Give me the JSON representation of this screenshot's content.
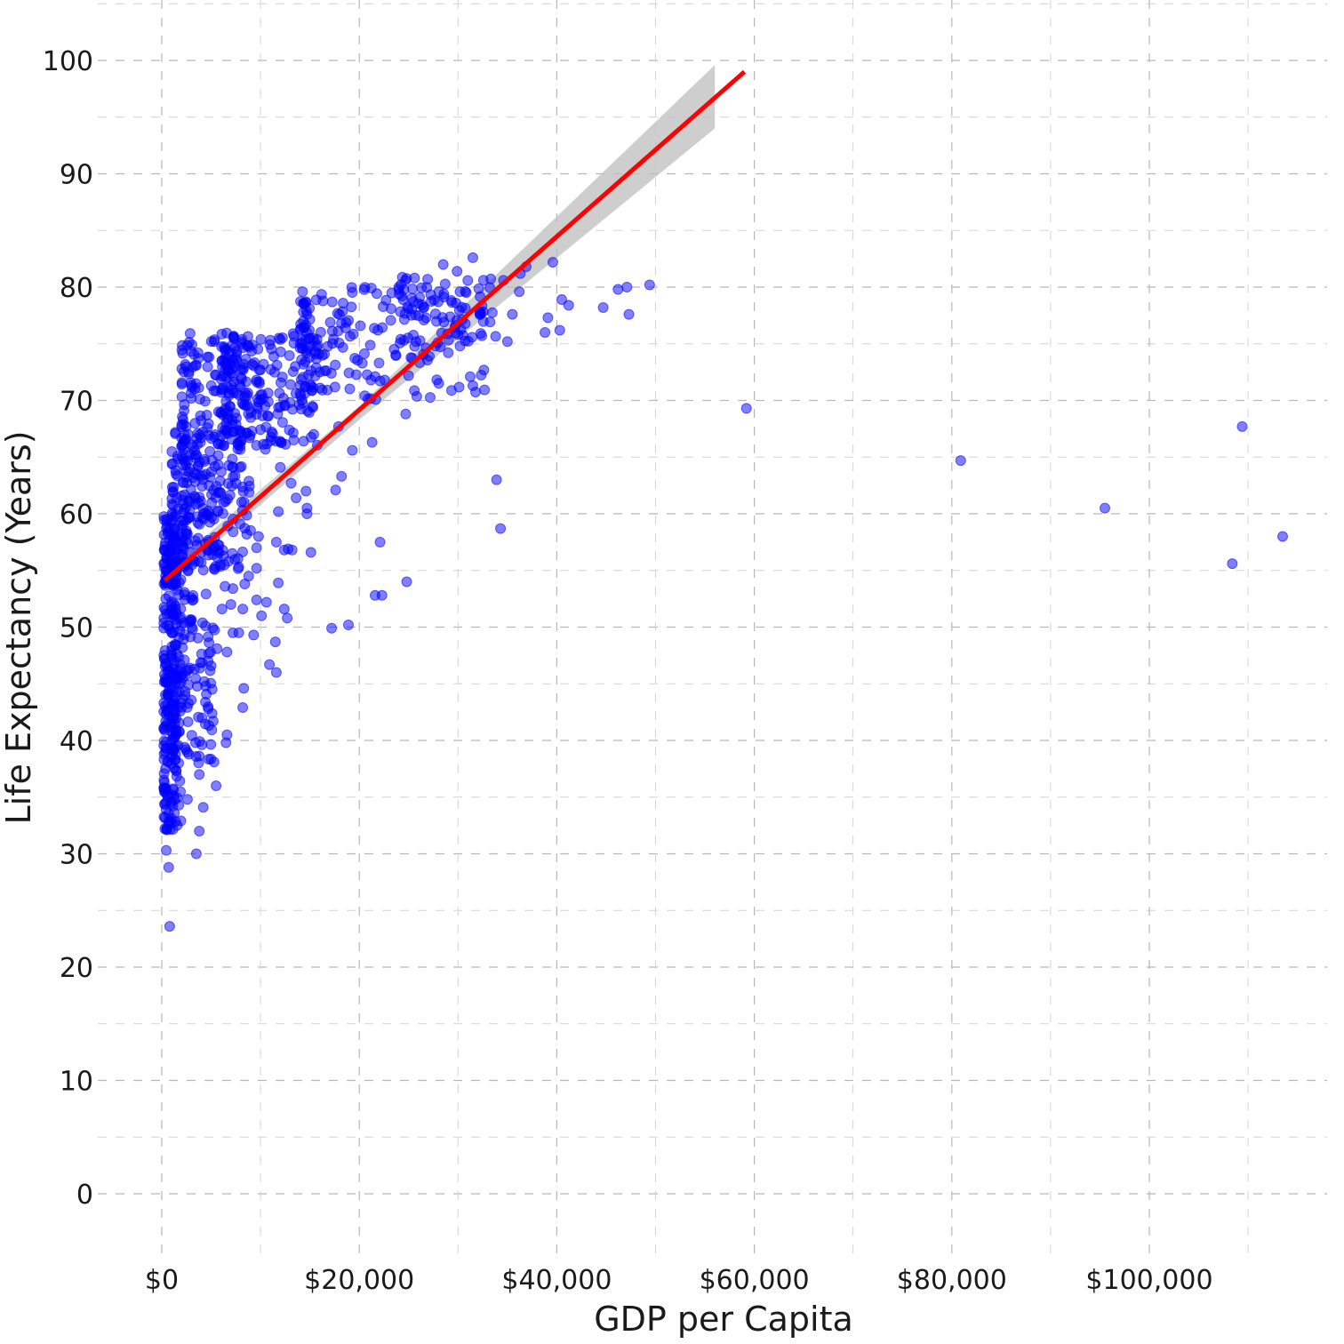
{
  "chart_data": {
    "type": "scatter",
    "title": "",
    "xlabel": "GDP per Capita",
    "ylabel": "Life Expectancy (Years)",
    "xlim": [
      -5000,
      118000
    ],
    "ylim": [
      -5,
      105
    ],
    "grid": true,
    "legend": "none",
    "x_ticks": [
      0,
      20000,
      40000,
      60000,
      80000,
      100000
    ],
    "x_tick_labels": [
      "$0",
      "$20,000",
      "$40,000",
      "$60,000",
      "$80,000",
      "$100,000"
    ],
    "y_ticks": [
      0,
      10,
      20,
      30,
      40,
      50,
      60,
      70,
      80,
      90,
      100
    ],
    "y_tick_labels": [
      "0",
      "10",
      "20",
      "30",
      "40",
      "50",
      "60",
      "70",
      "80",
      "90",
      "100"
    ],
    "colors": {
      "points": "#0000ff",
      "fit_line": "#ff0000",
      "confidence_band": "#bebebe"
    },
    "points": [
      [
        800,
        23.6
      ],
      [
        700,
        28.8
      ],
      [
        450,
        30.3
      ],
      [
        3500,
        30.0
      ],
      [
        3800,
        32.0
      ],
      [
        4200,
        34.1
      ],
      [
        2600,
        34.8
      ],
      [
        5500,
        36.0
      ],
      [
        3800,
        37.0
      ],
      [
        5300,
        38.1
      ],
      [
        6500,
        39.8
      ],
      [
        6600,
        40.5
      ],
      [
        4700,
        42.8
      ],
      [
        8200,
        42.9
      ],
      [
        8300,
        44.6
      ],
      [
        4300,
        45.2
      ],
      [
        4700,
        47.0
      ],
      [
        5600,
        48.1
      ],
      [
        6600,
        47.8
      ],
      [
        7200,
        49.5
      ],
      [
        7800,
        49.5
      ],
      [
        9300,
        49.3
      ],
      [
        11500,
        48.7
      ],
      [
        10900,
        46.7
      ],
      [
        11600,
        46.0
      ],
      [
        17200,
        49.9
      ],
      [
        18900,
        50.2
      ],
      [
        12700,
        50.8
      ],
      [
        10100,
        51.0
      ],
      [
        12400,
        51.6
      ],
      [
        10600,
        52.2
      ],
      [
        6100,
        51.6
      ],
      [
        8200,
        51.6
      ],
      [
        9600,
        52.4
      ],
      [
        7000,
        52.0
      ],
      [
        21600,
        52.8
      ],
      [
        22300,
        52.8
      ],
      [
        24800,
        54.0
      ],
      [
        8400,
        53.8
      ],
      [
        11800,
        53.9
      ],
      [
        6400,
        53.6
      ],
      [
        7200,
        53.4
      ],
      [
        8800,
        54.5
      ],
      [
        9600,
        55.2
      ],
      [
        5900,
        55.5
      ],
      [
        7800,
        55.3
      ],
      [
        12400,
        56.8
      ],
      [
        13200,
        56.8
      ],
      [
        15100,
        56.6
      ],
      [
        12800,
        56.9
      ],
      [
        11600,
        57.5
      ],
      [
        9600,
        57.0
      ],
      [
        8600,
        58.2
      ],
      [
        9800,
        58.0
      ],
      [
        22100,
        57.5
      ],
      [
        34300,
        58.7
      ],
      [
        14700,
        60.0
      ],
      [
        14700,
        60.5
      ],
      [
        13600,
        61.4
      ],
      [
        11800,
        60.2
      ],
      [
        14600,
        62.0
      ],
      [
        13100,
        62.7
      ],
      [
        18200,
        63.3
      ],
      [
        33900,
        63.0
      ],
      [
        17600,
        62.1
      ],
      [
        12000,
        64.1
      ],
      [
        10500,
        65.7
      ],
      [
        12100,
        66.3
      ],
      [
        19300,
        65.6
      ],
      [
        21300,
        66.3
      ],
      [
        24700,
        68.8
      ],
      [
        17900,
        67.7
      ],
      [
        31500,
        71.3
      ],
      [
        59200,
        69.3
      ],
      [
        80900,
        64.7
      ],
      [
        95500,
        60.5
      ],
      [
        108400,
        55.6
      ],
      [
        109400,
        67.7
      ],
      [
        113500,
        58.0
      ],
      [
        35000,
        75.2
      ],
      [
        38800,
        76.0
      ],
      [
        40300,
        76.2
      ],
      [
        44700,
        78.2
      ],
      [
        46200,
        79.8
      ],
      [
        47300,
        77.6
      ],
      [
        47100,
        80.0
      ],
      [
        49400,
        80.2
      ],
      [
        41200,
        78.4
      ],
      [
        40500,
        78.9
      ],
      [
        39600,
        82.2
      ],
      [
        36300,
        81.2
      ],
      [
        36200,
        79.6
      ],
      [
        36900,
        81.8
      ],
      [
        35500,
        77.6
      ],
      [
        39100,
        77.3
      ],
      [
        34600,
        80.6
      ],
      [
        31500,
        82.6
      ],
      [
        28500,
        82.0
      ],
      [
        29900,
        81.4
      ],
      [
        25600,
        80.8
      ],
      [
        26500,
        78.2
      ],
      [
        30200,
        79.6
      ],
      [
        32200,
        77.7
      ],
      [
        30000,
        75.8
      ],
      [
        30200,
        74.8
      ],
      [
        27700,
        74.8
      ],
      [
        27100,
        73.9
      ],
      [
        23700,
        74.0
      ],
      [
        22000,
        73.3
      ]
    ],
    "clusters": [
      {
        "x_range": [
          200,
          2000
        ],
        "y_range": [
          32,
          60
        ],
        "count": 260
      },
      {
        "x_range": [
          1000,
          5500
        ],
        "y_range": [
          38,
          68
        ],
        "count": 220
      },
      {
        "x_range": [
          2000,
          9000
        ],
        "y_range": [
          55,
          76
        ],
        "count": 240
      },
      {
        "x_range": [
          6000,
          16000
        ],
        "y_range": [
          66,
          76
        ],
        "count": 200
      },
      {
        "x_range": [
          14000,
          33000
        ],
        "y_range": [
          70,
          80
        ],
        "count": 170
      },
      {
        "x_range": [
          24000,
          34000
        ],
        "y_range": [
          75,
          81
        ],
        "count": 60
      }
    ],
    "fit": {
      "type": "linear",
      "x": [
        300,
        59000
      ],
      "y": [
        54.1,
        99.0
      ],
      "band_x": [
        300,
        56000
      ],
      "band_lower": [
        53.5,
        94.0
      ],
      "band_upper": [
        55.0,
        99.6
      ],
      "band_mid_x": 20000,
      "band_mid_lower": [
        68.3,
        69.5
      ]
    }
  }
}
